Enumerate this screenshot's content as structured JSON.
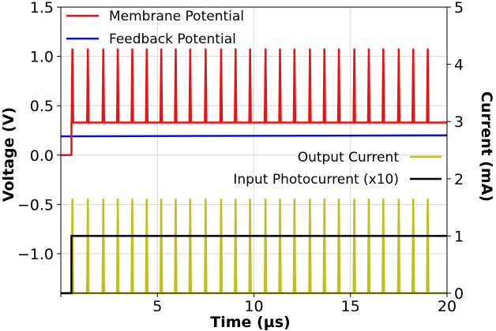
{
  "chart_data": {
    "type": "line",
    "xlabel": "Time (µs)",
    "ylabel_left": "Voltage (V)",
    "ylabel_right": "Current (mA)",
    "xlim": [
      0,
      20
    ],
    "ylim_left": [
      -1.4,
      1.5
    ],
    "ylim_right": [
      0,
      5
    ],
    "grid": true,
    "x_ticks": [
      0,
      5,
      10,
      15,
      20
    ],
    "x_tick_labels": [
      "",
      "5",
      "10",
      "15",
      "20"
    ],
    "y_left_ticks": [
      1.5,
      1.0,
      0.5,
      0.0,
      -0.5,
      -1.0
    ],
    "y_left_tick_labels": [
      "1.5",
      "1.0",
      "0.5",
      "0.0",
      "−0.5",
      "−1.0"
    ],
    "y_right_ticks": [
      5,
      4,
      3,
      2,
      1,
      0
    ],
    "y_right_tick_labels": [
      "5",
      "4",
      "3",
      "2",
      "1",
      "0"
    ],
    "spike_times": [
      0.6,
      1.4,
      2.2,
      2.95,
      3.7,
      4.45,
      5.2,
      5.95,
      6.7,
      7.5,
      8.3,
      9.05,
      9.8,
      10.6,
      11.35,
      12.1,
      12.9,
      13.65,
      14.4,
      15.2,
      15.95,
      16.7,
      17.5,
      18.25,
      19.0
    ],
    "series": [
      {
        "name": "Membrane Potential",
        "axis": "left",
        "color": "#ee1111",
        "pre_step_value": 0.0,
        "step_time": 0.55,
        "baseline": 0.33,
        "spike_peak": 1.08
      },
      {
        "name": "Feedback Potential",
        "axis": "left",
        "color": "#0a10d8",
        "start_value": 0.19,
        "end_value": 0.2
      },
      {
        "name": "Output Current",
        "axis": "right",
        "color": "#c2bf1d",
        "baseline": 0.0,
        "spike_peak": 1.65
      },
      {
        "name": "Input Photocurrent (x10)",
        "axis": "right",
        "color": "#000000",
        "pre_step_value": 0.0,
        "step_time": 0.55,
        "value": 1.0
      }
    ],
    "legend_upper": [
      "Membrane Potential",
      "Feedback Potential"
    ],
    "legend_lower": [
      "Output Current",
      "Input Photocurrent (x10)"
    ]
  }
}
